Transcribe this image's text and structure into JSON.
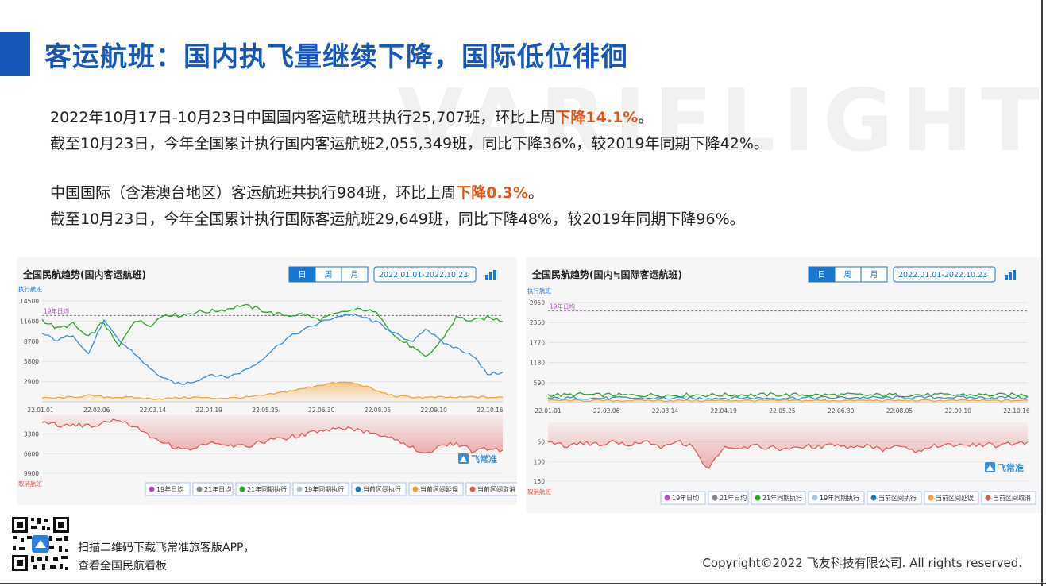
{
  "title": "客运航班：国内执飞量继续下降，国际低位徘徊",
  "watermark": "VARIFLIGHT",
  "paragraphs": {
    "p1": {
      "pre": "2022年10月17日-10月23日中国国内客运航班共执行25,707班，环比上周",
      "hl": "下降14.1%",
      "post": "。"
    },
    "p2": "截至10月23日，今年全国累计执行国内客运航班2,055,349班，同比下降36%，较2019年同期下降42%。",
    "p3": {
      "pre": "中国国际（含港澳台地区）客运航班共执行984班，环比上周",
      "hl": "下降0.3%",
      "post": "。"
    },
    "p4": "截至10月23日，今年全国累计执行国际客运航班29,649班，同比下降48%，较2019年同期下降96%。"
  },
  "footer": {
    "qr_line1": "扫描二维码下载飞常准旅客版APP，",
    "qr_line2": "查看全国民航看板",
    "copyright": "Copyright©2022 飞友科技有限公司. All rights reserved."
  },
  "colors": {
    "title_blue": "#1757b8",
    "highlight": "#e0561a",
    "green": "#2ca52c",
    "blue": "#3a8fd0",
    "orange": "#f0a030",
    "red": "#e05555",
    "purple": "#b050c0"
  },
  "chart_data": [
    {
      "type": "line",
      "title": "全国民航趋势(国内客运航班)",
      "toolbar": {
        "tabs": [
          "日",
          "周",
          "月"
        ],
        "active_tab": "日",
        "date_range": "2022.01.01-2022.10.23"
      },
      "ylabel": "执行航班",
      "ylabel_bottom": "取消航班",
      "ylim": [
        0,
        14500
      ],
      "yticks": [
        "14500",
        "11600",
        "8700",
        "5800",
        "2900"
      ],
      "xticks": [
        "22.01.01",
        "22.02.06",
        "22.03.14",
        "22.04.19",
        "22.05.25",
        "22.06.30",
        "22.08.05",
        "22.09.10",
        "22.10.16"
      ],
      "bottom_ylim": [
        0,
        9900
      ],
      "bottom_yticks": [
        "3300",
        "6600",
        "9900"
      ],
      "reference_label": "19年日均",
      "reference_value": 12400,
      "logo": "飞常准",
      "series": [
        {
          "name": "21年同期执行",
          "values": [
            11800,
            10500,
            11200,
            9200,
            11500,
            7800,
            11800,
            11000,
            12600,
            12400,
            12900,
            13000,
            13300,
            13900,
            13400,
            12700,
            12400,
            12600,
            11800,
            12500,
            13100,
            13300,
            12500,
            9300,
            8000,
            6300,
            8800,
            12200,
            11600,
            12100,
            11700
          ]
        },
        {
          "name": "当前区间执行",
          "values": [
            9800,
            8800,
            9700,
            6800,
            11700,
            8800,
            7000,
            4800,
            3200,
            2500,
            3000,
            4000,
            3500,
            4300,
            5500,
            7500,
            9200,
            10300,
            11300,
            12100,
            12600,
            12100,
            11200,
            9800,
            8500,
            10600,
            8600,
            7700,
            6800,
            4000,
            4200
          ]
        },
        {
          "name": "当前区间延误",
          "values": [
            500,
            550,
            650,
            900,
            700,
            650,
            600,
            450,
            450,
            600,
            650,
            500,
            550,
            600,
            800,
            1100,
            1500,
            1900,
            2400,
            2700,
            2800,
            2300,
            1400,
            800,
            700,
            600,
            650,
            600,
            700,
            650,
            600
          ]
        },
        {
          "name": "当前区间取消",
          "values": [
            1200,
            1800,
            1700,
            1900,
            1500,
            800,
            1900,
            3500,
            4800,
            5900,
            5600,
            4800,
            5400,
            5400,
            4900,
            4200,
            3900,
            3400,
            2900,
            2500,
            2400,
            2800,
            3300,
            4100,
            5400,
            6600,
            5400,
            4800,
            6200,
            5800,
            6000
          ]
        }
      ],
      "legend": [
        "19年日均",
        "21年日均",
        "21年同期执行",
        "19年同期执行",
        "当前区间执行",
        "当前区间延误",
        "当前区间取消"
      ]
    },
    {
      "type": "line",
      "title": "全国民航趋势(国内≒国际客运航班)",
      "toolbar": {
        "tabs": [
          "日",
          "周",
          "月"
        ],
        "active_tab": "日",
        "date_range": "2022.01.01-2022.10.23"
      },
      "ylabel": "执行航班",
      "ylabel_bottom": "取消航班",
      "ylim": [
        0,
        2950
      ],
      "yticks": [
        "2950",
        "2360",
        "1770",
        "1180",
        "590"
      ],
      "xticks": [
        "22.01.01",
        "22.02.06",
        "22.03.14",
        "22.04.19",
        "22.05.25",
        "22.06.30",
        "22.08.05",
        "22.09.10",
        "22.10.16"
      ],
      "bottom_ylim": [
        0,
        150
      ],
      "bottom_yticks": [
        "50",
        "100",
        "150"
      ],
      "reference_label": "19年日均",
      "reference_value": 2700,
      "logo": "飞常准",
      "series": [
        {
          "name": "21年同期执行",
          "values": [
            230,
            220,
            240,
            220,
            230,
            210,
            220,
            225,
            215,
            230,
            220,
            225,
            230,
            220,
            235,
            225,
            230,
            220,
            225,
            230,
            215,
            225,
            220,
            230,
            225,
            220,
            230,
            225,
            220,
            230,
            225
          ]
        },
        {
          "name": "当前区间执行",
          "values": [
            120,
            130,
            140,
            125,
            130,
            135,
            125,
            130,
            120,
            125,
            135,
            130,
            140,
            135,
            130,
            140,
            135,
            145,
            140,
            150,
            145,
            140,
            150,
            145,
            150,
            155,
            150,
            145,
            150,
            155,
            150
          ]
        },
        {
          "name": "当前区间延误",
          "values": [
            60,
            65,
            60,
            62,
            58,
            60,
            65,
            60,
            62,
            60,
            58,
            62,
            60,
            64,
            60,
            62,
            60,
            65,
            62,
            60,
            64,
            62,
            60,
            63,
            62,
            60,
            64,
            62,
            60,
            62,
            61
          ]
        },
        {
          "name": "当前区间取消",
          "values": [
            48,
            60,
            52,
            56,
            50,
            58,
            45,
            62,
            48,
            60,
            120,
            65,
            70,
            60,
            65,
            70,
            60,
            62,
            58,
            66,
            60,
            70,
            55,
            75,
            60,
            55,
            62,
            55,
            60,
            55,
            50
          ]
        }
      ],
      "legend": [
        "19年日均",
        "21年日均",
        "21年同期执行",
        "19年同期执行",
        "当前区间执行",
        "当前区间延误",
        "当前区间取消"
      ]
    }
  ]
}
